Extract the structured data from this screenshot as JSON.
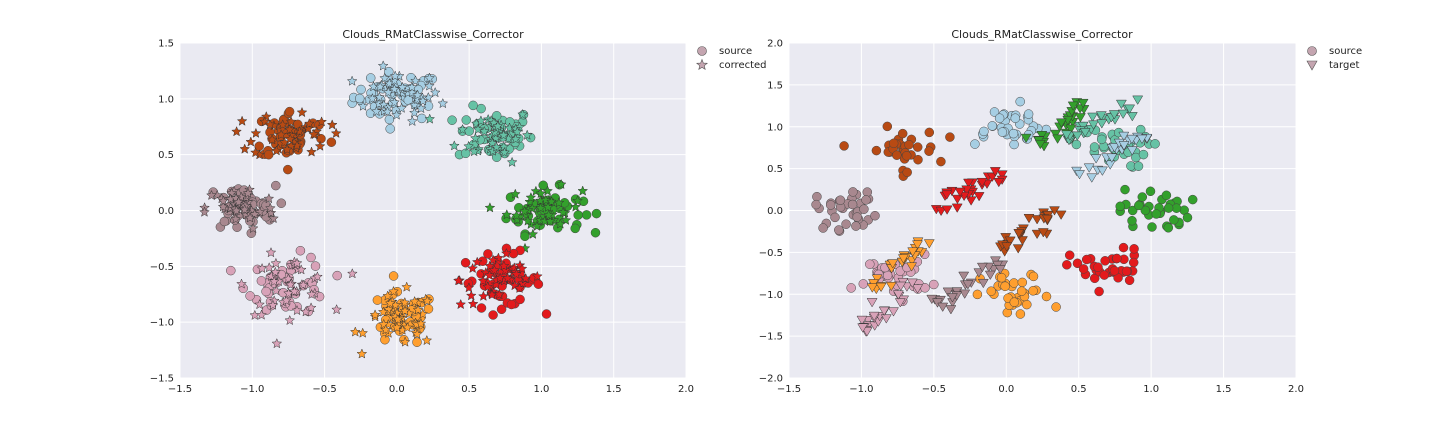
{
  "chart_data": [
    {
      "type": "scatter",
      "title": "Clouds_RMatClasswise_Corrector",
      "xlim": [
        -1.5,
        2.0
      ],
      "ylim": [
        -1.5,
        1.5
      ],
      "xticks": [
        -1.5,
        -1.0,
        -0.5,
        0.0,
        0.5,
        1.0,
        1.5,
        2.0
      ],
      "xtick_labels": [
        "−1.5",
        "−1.0",
        "−0.5",
        "0.0",
        "0.5",
        "1.0",
        "1.5",
        "2.0"
      ],
      "yticks": [
        -1.5,
        -1.0,
        -0.5,
        0.0,
        0.5,
        1.0,
        1.5
      ],
      "ytick_labels": [
        "−1.5",
        "−1.0",
        "−0.5",
        "0.0",
        "0.5",
        "1.0",
        "1.5"
      ],
      "grid": true,
      "legend_position": "outside-top-right",
      "legend": [
        {
          "label": "source",
          "marker": "circle",
          "color": "#c4a5b0"
        },
        {
          "label": "corrected",
          "marker": "star",
          "color": "#c4a5b0"
        }
      ],
      "clusters": [
        {
          "color": "#a6cee3",
          "center": [
            0.0,
            1.02
          ],
          "spread": [
            0.15,
            0.11
          ],
          "n": 45
        },
        {
          "color": "#66c2a5",
          "center": [
            0.68,
            0.68
          ],
          "spread": [
            0.13,
            0.12
          ],
          "n": 45
        },
        {
          "color": "#33a02c",
          "center": [
            1.02,
            0.0
          ],
          "spread": [
            0.13,
            0.1
          ],
          "n": 45
        },
        {
          "color": "#e31a1c",
          "center": [
            0.72,
            -0.62
          ],
          "spread": [
            0.14,
            0.12
          ],
          "n": 45
        },
        {
          "color": "#ff9f2f",
          "center": [
            0.03,
            -0.98
          ],
          "spread": [
            0.12,
            0.12
          ],
          "n": 45
        },
        {
          "color": "#d8a2b8",
          "center": [
            -0.75,
            -0.67
          ],
          "spread": [
            0.14,
            0.13
          ],
          "n": 45
        },
        {
          "color": "#a8888f",
          "center": [
            -1.08,
            0.02
          ],
          "spread": [
            0.12,
            0.1
          ],
          "n": 45
        },
        {
          "color": "#b84a13",
          "center": [
            -0.73,
            0.68
          ],
          "spread": [
            0.13,
            0.11
          ],
          "n": 45
        }
      ]
    },
    {
      "type": "scatter",
      "title": "Clouds_RMatClasswise_Corrector",
      "xlim": [
        -1.5,
        2.0
      ],
      "ylim": [
        -2.0,
        2.0
      ],
      "xticks": [
        -1.5,
        -1.0,
        -0.5,
        0.0,
        0.5,
        1.0,
        1.5,
        2.0
      ],
      "xtick_labels": [
        "−1.5",
        "−1.0",
        "−0.5",
        "0.0",
        "0.5",
        "1.0",
        "1.5",
        "2.0"
      ],
      "yticks": [
        -2.0,
        -1.5,
        -1.0,
        -0.5,
        0.0,
        0.5,
        1.0,
        1.5,
        2.0
      ],
      "ytick_labels": [
        "−2.0",
        "−1.5",
        "−1.0",
        "−0.5",
        "0.0",
        "0.5",
        "1.0",
        "1.5",
        "2.0"
      ],
      "grid": true,
      "legend_position": "outside-top-right",
      "legend": [
        {
          "label": "source",
          "marker": "circle",
          "color": "#c4a5b0"
        },
        {
          "label": "target",
          "marker": "triangle-down",
          "color": "#c4a5b0"
        }
      ],
      "source_clusters": [
        {
          "color": "#a6cee3",
          "center": [
            0.0,
            1.02
          ],
          "spread": [
            0.15,
            0.12
          ],
          "n": 35
        },
        {
          "color": "#66c2a5",
          "center": [
            0.72,
            0.75
          ],
          "spread": [
            0.13,
            0.12
          ],
          "n": 35
        },
        {
          "color": "#33a02c",
          "center": [
            1.02,
            0.0
          ],
          "spread": [
            0.12,
            0.13
          ],
          "n": 35
        },
        {
          "color": "#e31a1c",
          "center": [
            0.7,
            -0.7
          ],
          "spread": [
            0.13,
            0.12
          ],
          "n": 35
        },
        {
          "color": "#ff9f2f",
          "center": [
            0.07,
            -1.02
          ],
          "spread": [
            0.12,
            0.14
          ],
          "n": 35
        },
        {
          "color": "#d8a2b8",
          "center": [
            -0.78,
            -0.77
          ],
          "spread": [
            0.13,
            0.12
          ],
          "n": 35
        },
        {
          "color": "#a8888f",
          "center": [
            -1.08,
            0.02
          ],
          "spread": [
            0.12,
            0.12
          ],
          "n": 35
        },
        {
          "color": "#b84a13",
          "center": [
            -0.73,
            0.72
          ],
          "spread": [
            0.13,
            0.13
          ],
          "n": 35
        }
      ],
      "target_clusters": [
        {
          "color": "#33a02c",
          "from": [
            0.2,
            0.8
          ],
          "to": [
            0.6,
            1.3
          ],
          "n": 28
        },
        {
          "color": "#66c2a5",
          "from": [
            0.4,
            0.85
          ],
          "to": [
            1.0,
            1.35
          ],
          "n": 30
        },
        {
          "color": "#a6cee3",
          "from": [
            0.5,
            0.4
          ],
          "to": [
            0.95,
            0.9
          ],
          "n": 28
        },
        {
          "color": "#e31a1c",
          "from": [
            -0.48,
            0.0
          ],
          "to": [
            -0.05,
            0.5
          ],
          "n": 28
        },
        {
          "color": "#b84a13",
          "from": [
            -0.05,
            -0.45
          ],
          "to": [
            0.4,
            0.0
          ],
          "n": 28
        },
        {
          "color": "#a8888f",
          "from": [
            -0.5,
            -1.15
          ],
          "to": [
            -0.05,
            -0.6
          ],
          "n": 28
        },
        {
          "color": "#ff9f2f",
          "from": [
            -0.95,
            -0.9
          ],
          "to": [
            -0.5,
            -0.35
          ],
          "n": 28
        },
        {
          "color": "#d8a2b8",
          "from": [
            -1.0,
            -1.45
          ],
          "to": [
            -0.6,
            -0.85
          ],
          "n": 28
        }
      ]
    }
  ]
}
